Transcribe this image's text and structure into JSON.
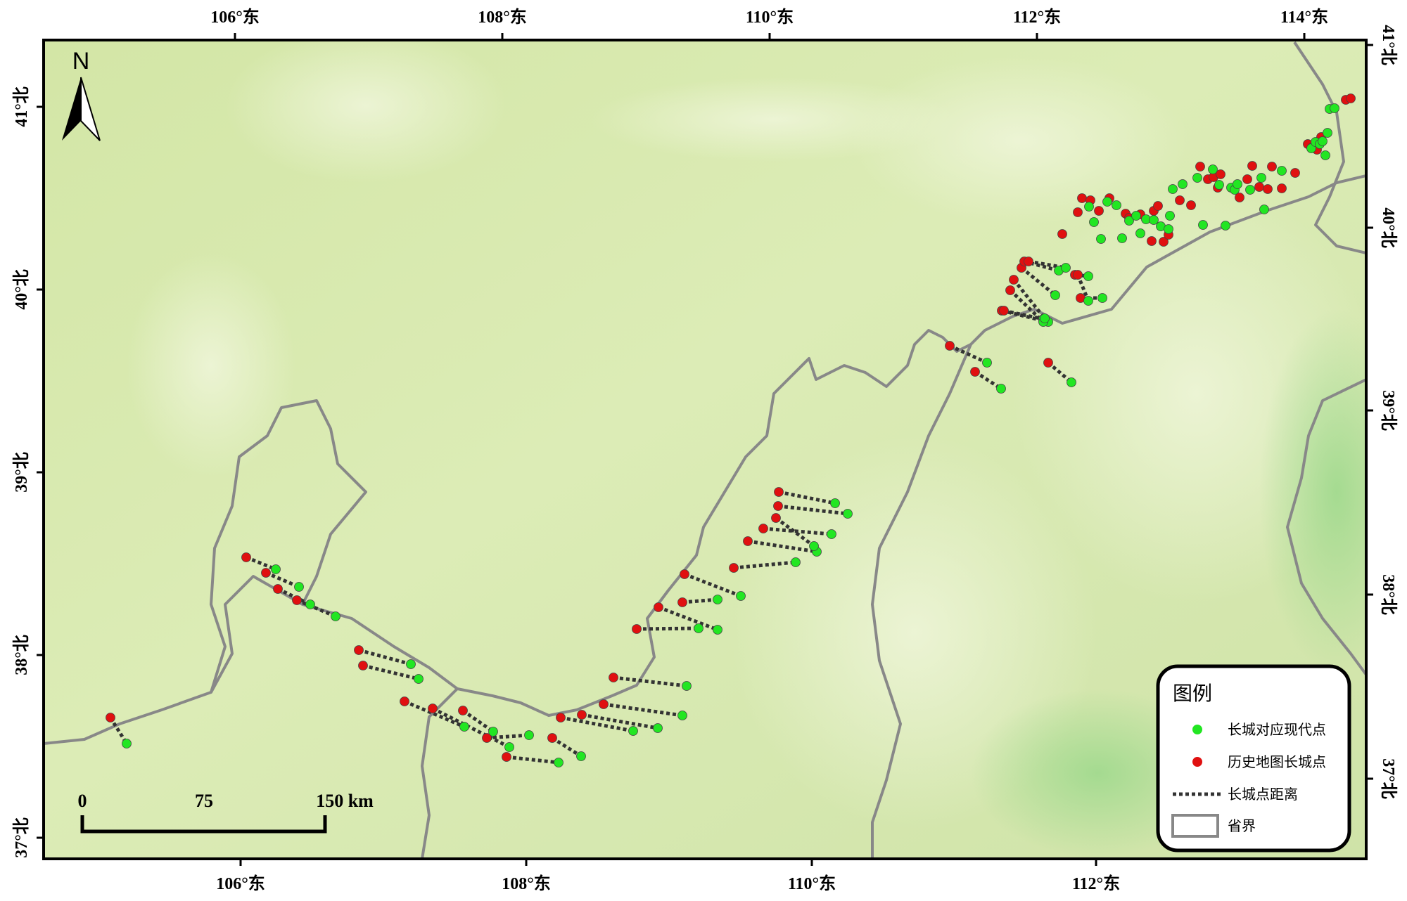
{
  "top_axis_labels": [
    "106°东",
    "108°东",
    "110°东",
    "112°东",
    "114°东"
  ],
  "bottom_axis_labels": [
    "106°东",
    "108°东",
    "110°东",
    "112°东"
  ],
  "left_axis_labels": [
    "41°北",
    "40°北",
    "39°北",
    "38°北",
    "37°北"
  ],
  "right_axis_labels": [
    "41°北",
    "40°北",
    "39°北",
    "38°北",
    "37°北"
  ],
  "north_arrow": {
    "label": "N",
    "icon": "north-arrow-icon"
  },
  "scale_bar": {
    "labels": [
      "0",
      "75",
      "150 km"
    ]
  },
  "legend": {
    "title": "图例",
    "items": [
      {
        "label": "长城对应现代点",
        "symbol": "green-dot",
        "color": "#22e622"
      },
      {
        "label": "历史地图长城点",
        "symbol": "red-dot",
        "color": "#e01010"
      },
      {
        "label": "长城点距离",
        "symbol": "dotted-line",
        "color": "#333333"
      },
      {
        "label": "省界",
        "symbol": "grey-rectangle",
        "color": "#888888"
      }
    ]
  },
  "colors": {
    "terrain": "#d9eab0",
    "boundary": "#888888",
    "frame": "#000000"
  }
}
